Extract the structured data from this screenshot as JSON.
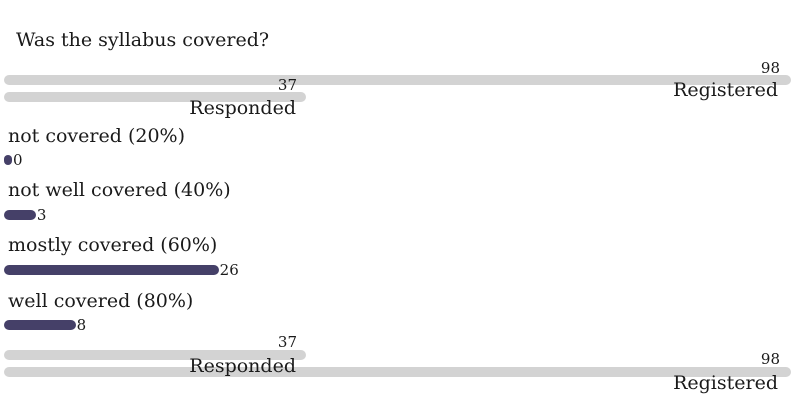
{
  "colors": {
    "option_bar_fill": "#454068",
    "summary_track": "#d3d3d3",
    "text": "#1a1a1a"
  },
  "chart_data": {
    "type": "bar",
    "orientation": "horizontal",
    "title": "Was the syllabus covered?",
    "max_value": 98,
    "registered": {
      "label": "Registered",
      "value": 98
    },
    "responded": {
      "label": "Responded",
      "value": 37
    },
    "categories": [
      "not covered (20%)",
      "not well covered (40%)",
      "mostly covered (60%)",
      "well covered (80%)"
    ],
    "values": [
      0,
      3,
      26,
      8
    ],
    "options": [
      {
        "label": "not covered (20%)",
        "value": 0
      },
      {
        "label": "not well covered (40%)",
        "value": 3
      },
      {
        "label": "mostly covered (60%)",
        "value": 26
      },
      {
        "label": "well covered (80%)",
        "value": 8
      }
    ],
    "layout_hint": "registered/responded summary pill bars above and below the option bars; bars scaled to max_value; value labels at right end of each bar"
  }
}
